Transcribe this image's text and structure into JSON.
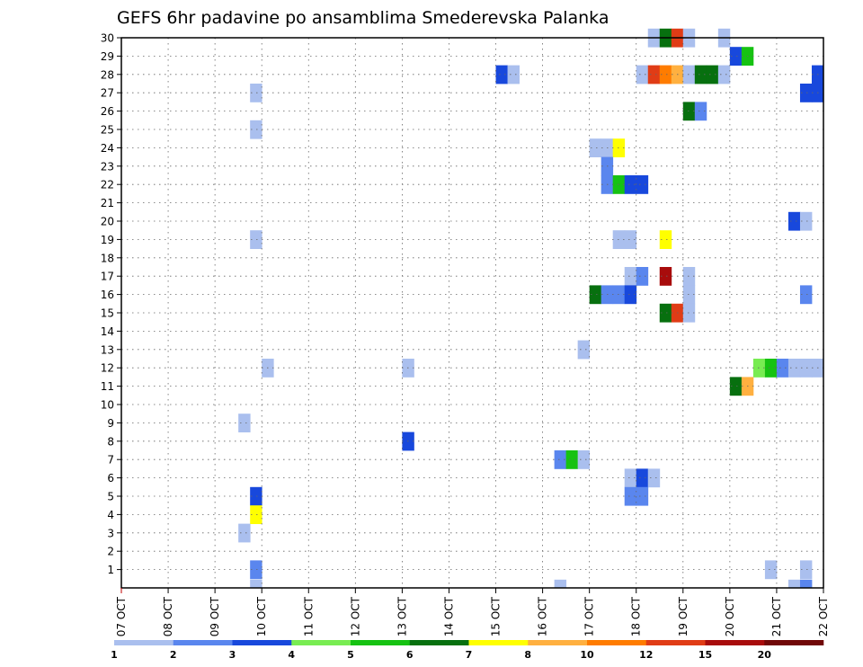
{
  "chart_data": {
    "type": "heatmap",
    "title": "GEFS 6hr padavine po ansamblima Smederevska Palanka",
    "xlabel": "",
    "ylabel": "",
    "x_ticks": [
      "07 OCT",
      "08 OCT",
      "09 OCT",
      "10 OCT",
      "11 OCT",
      "12 OCT",
      "13 OCT",
      "14 OCT",
      "15 OCT",
      "16 OCT",
      "17 OCT",
      "18 OCT",
      "19 OCT",
      "20 OCT",
      "21 OCT",
      "22 OCT"
    ],
    "y_ticks": [
      "1",
      "2",
      "3",
      "4",
      "5",
      "6",
      "7",
      "8",
      "9",
      "10",
      "11",
      "12",
      "13",
      "14",
      "15",
      "16",
      "17",
      "18",
      "19",
      "20",
      "21",
      "22",
      "23",
      "24",
      "25",
      "26",
      "27",
      "28",
      "29",
      "30"
    ],
    "x_range": [
      0,
      60
    ],
    "y_range": [
      0,
      30
    ],
    "grid": true,
    "legend": {
      "placement": "bottom",
      "labels": [
        "1",
        "2",
        "3",
        "4",
        "5",
        "6",
        "7",
        "8",
        "10",
        "12",
        "15",
        "20"
      ],
      "colors": [
        "#aabfee",
        "#5a86ee",
        "#1848dc",
        "#78ec52",
        "#16c212",
        "#07700f",
        "#ffff00",
        "#ffb040",
        "#ff7c00",
        "#e03c16",
        "#a80c0c",
        "#700808"
      ]
    },
    "series": [
      {
        "member": 30,
        "cells": [
          [
            45,
            1
          ],
          [
            46,
            6
          ],
          [
            47,
            10
          ],
          [
            48,
            1
          ],
          [
            51,
            1
          ]
        ]
      },
      {
        "member": 29,
        "cells": [
          [
            52,
            3
          ],
          [
            53,
            5
          ]
        ]
      },
      {
        "member": 28,
        "cells": [
          [
            32,
            3
          ],
          [
            33,
            1
          ],
          [
            44,
            1
          ],
          [
            45,
            10
          ],
          [
            46,
            9
          ],
          [
            47,
            8
          ],
          [
            48,
            1
          ],
          [
            49,
            6
          ],
          [
            50,
            6
          ],
          [
            51,
            1
          ],
          [
            59,
            3
          ]
        ]
      },
      {
        "member": 27,
        "cells": [
          [
            11,
            1
          ],
          [
            58,
            3
          ],
          [
            59,
            3
          ]
        ]
      },
      {
        "member": 26,
        "cells": [
          [
            48,
            6
          ],
          [
            49,
            2
          ]
        ]
      },
      {
        "member": 25,
        "cells": [
          [
            11,
            1
          ]
        ]
      },
      {
        "member": 24,
        "cells": [
          [
            40,
            1
          ],
          [
            41,
            1
          ],
          [
            42,
            7
          ]
        ]
      },
      {
        "member": 23,
        "cells": [
          [
            41,
            2
          ]
        ]
      },
      {
        "member": 22,
        "cells": [
          [
            41,
            2
          ],
          [
            42,
            5
          ],
          [
            43,
            3
          ],
          [
            44,
            3
          ]
        ]
      },
      {
        "member": 20,
        "cells": [
          [
            57,
            3
          ],
          [
            58,
            1
          ]
        ]
      },
      {
        "member": 19,
        "cells": [
          [
            11,
            1
          ],
          [
            42,
            1
          ],
          [
            43,
            1
          ],
          [
            46,
            7
          ]
        ]
      },
      {
        "member": 17,
        "cells": [
          [
            43,
            1
          ],
          [
            44,
            2
          ],
          [
            46,
            11
          ],
          [
            48,
            1
          ]
        ]
      },
      {
        "member": 16,
        "cells": [
          [
            40,
            6
          ],
          [
            41,
            2
          ],
          [
            42,
            2
          ],
          [
            43,
            3
          ],
          [
            48,
            1
          ],
          [
            58,
            2
          ]
        ]
      },
      {
        "member": 15,
        "cells": [
          [
            46,
            6
          ],
          [
            47,
            10
          ],
          [
            48,
            1
          ]
        ]
      },
      {
        "member": 13,
        "cells": [
          [
            39,
            1
          ]
        ]
      },
      {
        "member": 12,
        "cells": [
          [
            12,
            1
          ],
          [
            24,
            1
          ],
          [
            54,
            4
          ],
          [
            55,
            5
          ],
          [
            56,
            2
          ],
          [
            57,
            1
          ],
          [
            58,
            1
          ],
          [
            59,
            1
          ]
        ]
      },
      {
        "member": 11,
        "cells": [
          [
            52,
            6
          ],
          [
            53,
            8
          ]
        ]
      },
      {
        "member": 9,
        "cells": [
          [
            10,
            1
          ]
        ]
      },
      {
        "member": 8,
        "cells": [
          [
            24,
            3
          ]
        ]
      },
      {
        "member": 7,
        "cells": [
          [
            37,
            2
          ],
          [
            38,
            5
          ],
          [
            39,
            1
          ]
        ]
      },
      {
        "member": 6,
        "cells": [
          [
            43,
            1
          ],
          [
            44,
            3
          ],
          [
            45,
            1
          ]
        ]
      },
      {
        "member": 5,
        "cells": [
          [
            11,
            3
          ],
          [
            43,
            2
          ],
          [
            44,
            2
          ]
        ]
      },
      {
        "member": 4,
        "cells": [
          [
            11,
            7
          ]
        ]
      },
      {
        "member": 3,
        "cells": [
          [
            10,
            1
          ]
        ]
      },
      {
        "member": 1,
        "cells": [
          [
            11,
            2
          ],
          [
            55,
            1
          ],
          [
            58,
            1
          ]
        ]
      },
      {
        "member": 0,
        "cells": [
          [
            11,
            1
          ],
          [
            37,
            1
          ],
          [
            57,
            1
          ],
          [
            58,
            2
          ]
        ]
      }
    ]
  }
}
